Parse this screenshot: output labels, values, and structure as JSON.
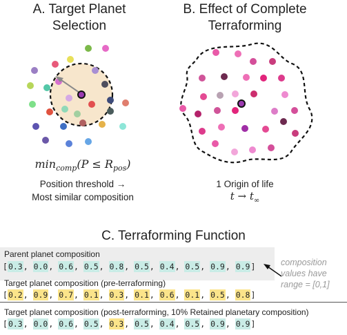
{
  "panel_a": {
    "title_line1": "A. Target Planet",
    "title_line2": "Selection",
    "formula_main": "min",
    "formula_sub": "comp",
    "formula_mid": "(P ≤ R",
    "formula_sub2": "pos",
    "formula_end": ")",
    "caption_line1": "Position threshold →",
    "caption_line2": "Most similar composition"
  },
  "panel_b": {
    "title_line1": "B. Effect of Complete",
    "title_line2": "Terraforming",
    "caption": "1 Origin of life",
    "time_t": "t",
    "time_arrow": "→",
    "time_tinf": "t",
    "time_sub": "∞"
  },
  "panel_c": {
    "title": "C. Terraforming Function",
    "parent_label": "Parent planet composition",
    "parent_values": [
      "0.3",
      "0.0",
      "0.6",
      "0.5",
      "0.8",
      "0.5",
      "0.4",
      "0.5",
      "0.9",
      "0.9"
    ],
    "target_pre_label": "Target planet composition (pre-terraforming)",
    "target_pre_values": [
      "0.2",
      "0.9",
      "0.7",
      "0.1",
      "0.3",
      "0.1",
      "0.6",
      "0.1",
      "0.5",
      "0.8"
    ],
    "target_post_label": "Target planet composition (post-terraforming, 10% Retained planetary composition)",
    "target_post_values": [
      "0.3",
      "0.0",
      "0.6",
      "0.5",
      "0.3",
      "0.5",
      "0.4",
      "0.5",
      "0.9",
      "0.9"
    ],
    "post_highlight": [
      "teal",
      "teal",
      "teal",
      "teal",
      "gold",
      "teal",
      "teal",
      "teal",
      "teal",
      "teal"
    ],
    "note_line1": "composition",
    "note_line2": "values have",
    "note_line3": "range = [0,1]"
  },
  "colors": {
    "teal_highlight": "#c9ece6",
    "gold_highlight": "#fbe48a",
    "threshold_fill": "#f7e6cc",
    "note_gray": "#9a9a9a"
  }
}
